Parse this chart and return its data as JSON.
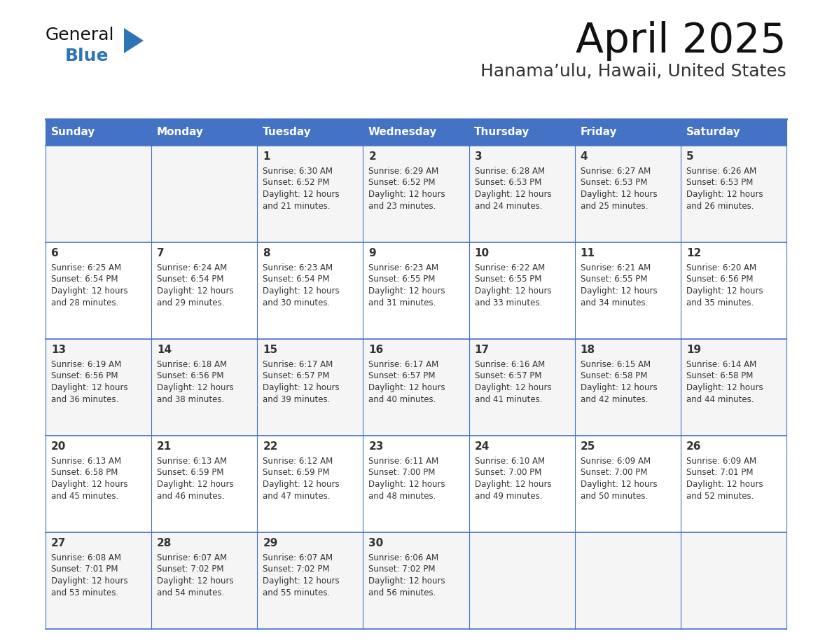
{
  "title": "April 2025",
  "subtitle": "Hanama’ulu, Hawaii, United States",
  "days_of_week": [
    "Sunday",
    "Monday",
    "Tuesday",
    "Wednesday",
    "Thursday",
    "Friday",
    "Saturday"
  ],
  "header_bg": "#4472C4",
  "header_text": "#FFFFFF",
  "cell_bg": "#FFFFFF",
  "cell_bg_alt": "#F0F0F0",
  "border_color": "#4472C4",
  "day_number_color": "#333333",
  "text_color": "#333333",
  "title_color": "#111111",
  "subtitle_color": "#333333",
  "logo_general_color": "#111111",
  "logo_blue_color": "#2E75B6",
  "logo_tri_color": "#2E75B6",
  "calendar_data": [
    [
      null,
      null,
      {
        "day": 1,
        "sunrise": "6:30 AM",
        "sunset": "6:52 PM",
        "daylight": "12 hours and 21 minutes."
      },
      {
        "day": 2,
        "sunrise": "6:29 AM",
        "sunset": "6:52 PM",
        "daylight": "12 hours and 23 minutes."
      },
      {
        "day": 3,
        "sunrise": "6:28 AM",
        "sunset": "6:53 PM",
        "daylight": "12 hours and 24 minutes."
      },
      {
        "day": 4,
        "sunrise": "6:27 AM",
        "sunset": "6:53 PM",
        "daylight": "12 hours and 25 minutes."
      },
      {
        "day": 5,
        "sunrise": "6:26 AM",
        "sunset": "6:53 PM",
        "daylight": "12 hours and 26 minutes."
      }
    ],
    [
      {
        "day": 6,
        "sunrise": "6:25 AM",
        "sunset": "6:54 PM",
        "daylight": "12 hours and 28 minutes."
      },
      {
        "day": 7,
        "sunrise": "6:24 AM",
        "sunset": "6:54 PM",
        "daylight": "12 hours and 29 minutes."
      },
      {
        "day": 8,
        "sunrise": "6:23 AM",
        "sunset": "6:54 PM",
        "daylight": "12 hours and 30 minutes."
      },
      {
        "day": 9,
        "sunrise": "6:23 AM",
        "sunset": "6:55 PM",
        "daylight": "12 hours and 31 minutes."
      },
      {
        "day": 10,
        "sunrise": "6:22 AM",
        "sunset": "6:55 PM",
        "daylight": "12 hours and 33 minutes."
      },
      {
        "day": 11,
        "sunrise": "6:21 AM",
        "sunset": "6:55 PM",
        "daylight": "12 hours and 34 minutes."
      },
      {
        "day": 12,
        "sunrise": "6:20 AM",
        "sunset": "6:56 PM",
        "daylight": "12 hours and 35 minutes."
      }
    ],
    [
      {
        "day": 13,
        "sunrise": "6:19 AM",
        "sunset": "6:56 PM",
        "daylight": "12 hours and 36 minutes."
      },
      {
        "day": 14,
        "sunrise": "6:18 AM",
        "sunset": "6:56 PM",
        "daylight": "12 hours and 38 minutes."
      },
      {
        "day": 15,
        "sunrise": "6:17 AM",
        "sunset": "6:57 PM",
        "daylight": "12 hours and 39 minutes."
      },
      {
        "day": 16,
        "sunrise": "6:17 AM",
        "sunset": "6:57 PM",
        "daylight": "12 hours and 40 minutes."
      },
      {
        "day": 17,
        "sunrise": "6:16 AM",
        "sunset": "6:57 PM",
        "daylight": "12 hours and 41 minutes."
      },
      {
        "day": 18,
        "sunrise": "6:15 AM",
        "sunset": "6:58 PM",
        "daylight": "12 hours and 42 minutes."
      },
      {
        "day": 19,
        "sunrise": "6:14 AM",
        "sunset": "6:58 PM",
        "daylight": "12 hours and 44 minutes."
      }
    ],
    [
      {
        "day": 20,
        "sunrise": "6:13 AM",
        "sunset": "6:58 PM",
        "daylight": "12 hours and 45 minutes."
      },
      {
        "day": 21,
        "sunrise": "6:13 AM",
        "sunset": "6:59 PM",
        "daylight": "12 hours and 46 minutes."
      },
      {
        "day": 22,
        "sunrise": "6:12 AM",
        "sunset": "6:59 PM",
        "daylight": "12 hours and 47 minutes."
      },
      {
        "day": 23,
        "sunrise": "6:11 AM",
        "sunset": "7:00 PM",
        "daylight": "12 hours and 48 minutes."
      },
      {
        "day": 24,
        "sunrise": "6:10 AM",
        "sunset": "7:00 PM",
        "daylight": "12 hours and 49 minutes."
      },
      {
        "day": 25,
        "sunrise": "6:09 AM",
        "sunset": "7:00 PM",
        "daylight": "12 hours and 50 minutes."
      },
      {
        "day": 26,
        "sunrise": "6:09 AM",
        "sunset": "7:01 PM",
        "daylight": "12 hours and 52 minutes."
      }
    ],
    [
      {
        "day": 27,
        "sunrise": "6:08 AM",
        "sunset": "7:01 PM",
        "daylight": "12 hours and 53 minutes."
      },
      {
        "day": 28,
        "sunrise": "6:07 AM",
        "sunset": "7:02 PM",
        "daylight": "12 hours and 54 minutes."
      },
      {
        "day": 29,
        "sunrise": "6:07 AM",
        "sunset": "7:02 PM",
        "daylight": "12 hours and 55 minutes."
      },
      {
        "day": 30,
        "sunrise": "6:06 AM",
        "sunset": "7:02 PM",
        "daylight": "12 hours and 56 minutes."
      },
      null,
      null,
      null
    ]
  ]
}
